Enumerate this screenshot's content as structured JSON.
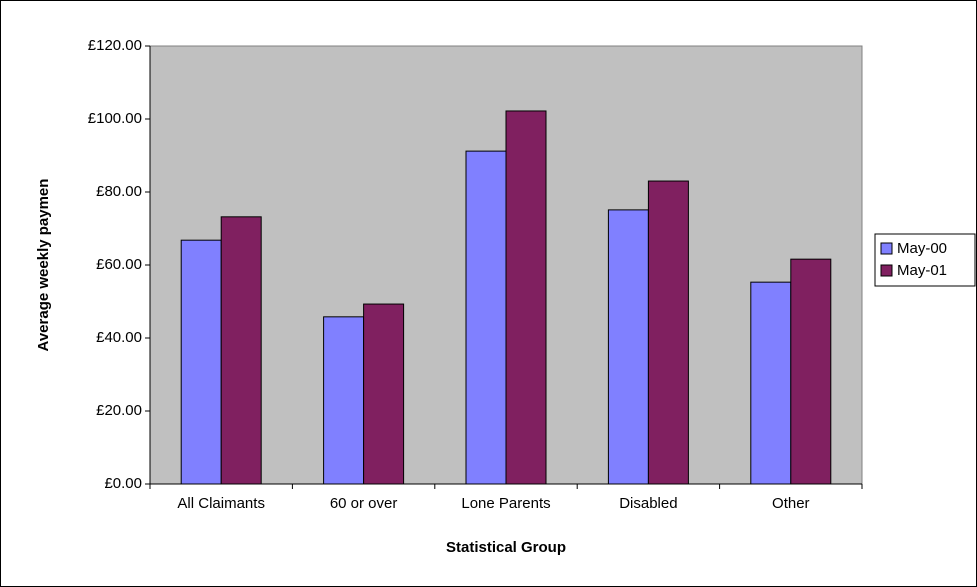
{
  "chart_data": {
    "type": "bar",
    "categories": [
      "All Claimants",
      "60 or over",
      "Lone Parents",
      "Disabled",
      "Other"
    ],
    "series": [
      {
        "name": "May-00",
        "color": "#8080ff",
        "values": [
          66.8,
          45.8,
          91.2,
          75.1,
          55.3
        ]
      },
      {
        "name": "May-01",
        "color": "#802060",
        "values": [
          73.2,
          49.3,
          102.2,
          83,
          61.6
        ]
      }
    ],
    "x_label": "Statistical Group",
    "y_label": "Average weekly paymen",
    "ylim": [
      0,
      120
    ],
    "yticks": [
      {
        "value": 0,
        "label": "£0.00"
      },
      {
        "value": 20,
        "label": "£20.00"
      },
      {
        "value": 40,
        "label": "£40.00"
      },
      {
        "value": 60,
        "label": "£60.00"
      },
      {
        "value": 80,
        "label": "£80.00"
      },
      {
        "value": 100,
        "label": "£100.00"
      },
      {
        "value": 120,
        "label": "£120.00"
      }
    ],
    "plot_background": "#c0c0c0",
    "legend": "right"
  }
}
